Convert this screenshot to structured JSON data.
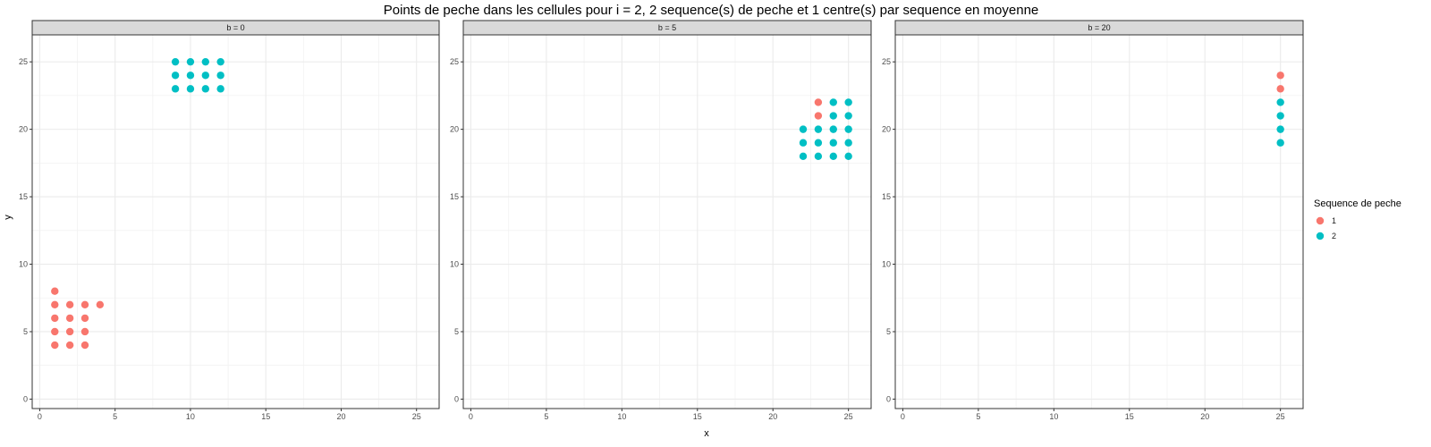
{
  "chart_data": {
    "type": "scatter",
    "title": "Points de peche dans les cellules pour i = 2, 2 sequence(s) de peche et 1 centre(s) par sequence en moyenne",
    "xlabel": "x",
    "ylabel": "y",
    "xlim": [
      -0.5,
      26.5
    ],
    "ylim": [
      -0.7,
      27.0
    ],
    "xticks": [
      0,
      5,
      10,
      15,
      20,
      25
    ],
    "yticks": [
      0,
      5,
      10,
      15,
      20,
      25
    ],
    "grid": true,
    "legend": {
      "title": "Sequence de peche",
      "placement": "right",
      "entries": [
        {
          "label": "1",
          "color": "#F8766D"
        },
        {
          "label": "2",
          "color": "#00BFC4"
        }
      ]
    },
    "panels": [
      {
        "label": "b = 0",
        "series": [
          {
            "name": "1",
            "color": "#F8766D",
            "points": [
              [
                1,
                8
              ],
              [
                1,
                7
              ],
              [
                2,
                7
              ],
              [
                3,
                7
              ],
              [
                4,
                7
              ],
              [
                1,
                6
              ],
              [
                2,
                6
              ],
              [
                3,
                6
              ],
              [
                1,
                5
              ],
              [
                2,
                5
              ],
              [
                3,
                5
              ],
              [
                1,
                4
              ],
              [
                2,
                4
              ],
              [
                3,
                4
              ]
            ]
          },
          {
            "name": "2",
            "color": "#00BFC4",
            "points": [
              [
                9,
                25
              ],
              [
                10,
                25
              ],
              [
                11,
                25
              ],
              [
                12,
                25
              ],
              [
                9,
                24
              ],
              [
                10,
                24
              ],
              [
                11,
                24
              ],
              [
                12,
                24
              ],
              [
                9,
                23
              ],
              [
                10,
                23
              ],
              [
                11,
                23
              ],
              [
                12,
                23
              ]
            ]
          }
        ]
      },
      {
        "label": "b = 5",
        "series": [
          {
            "name": "1",
            "color": "#F8766D",
            "points": [
              [
                23,
                22
              ],
              [
                23,
                21
              ]
            ]
          },
          {
            "name": "2",
            "color": "#00BFC4",
            "points": [
              [
                24,
                22
              ],
              [
                25,
                22
              ],
              [
                24,
                21
              ],
              [
                25,
                21
              ],
              [
                22,
                20
              ],
              [
                23,
                20
              ],
              [
                24,
                20
              ],
              [
                25,
                20
              ],
              [
                22,
                19
              ],
              [
                23,
                19
              ],
              [
                24,
                19
              ],
              [
                25,
                19
              ],
              [
                22,
                18
              ],
              [
                23,
                18
              ],
              [
                24,
                18
              ],
              [
                25,
                18
              ]
            ]
          }
        ]
      },
      {
        "label": "b = 20",
        "series": [
          {
            "name": "1",
            "color": "#F8766D",
            "points": [
              [
                25,
                24
              ],
              [
                25,
                23
              ]
            ]
          },
          {
            "name": "2",
            "color": "#00BFC4",
            "points": [
              [
                25,
                22
              ],
              [
                25,
                21
              ],
              [
                25,
                20
              ],
              [
                25,
                19
              ]
            ]
          }
        ]
      }
    ]
  }
}
